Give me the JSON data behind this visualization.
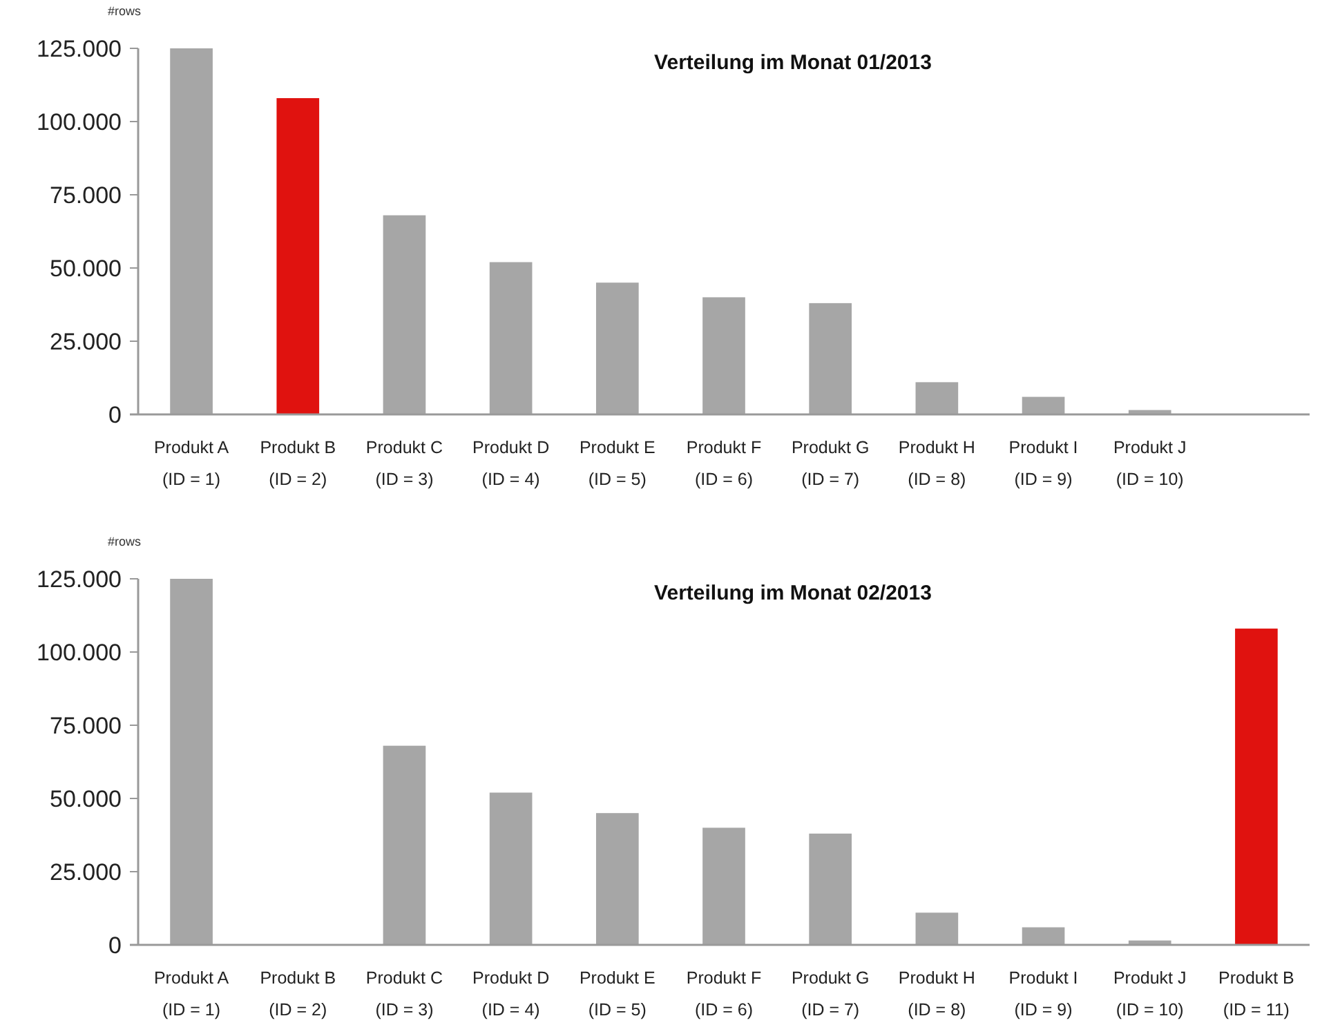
{
  "chart_data": [
    {
      "type": "bar",
      "title": "Verteilung im Monat 01/2013",
      "ylabel": "#rows",
      "categories": [
        "Produkt A\n(ID = 1)",
        "Produkt B\n(ID = 2)",
        "Produkt C\n(ID = 3)",
        "Produkt D\n(ID = 4)",
        "Produkt E\n(ID = 5)",
        "Produkt F\n(ID = 6)",
        "Produkt G\n(ID = 7)",
        "Produkt H\n(ID = 8)",
        "Produkt I\n(ID = 9)",
        "Produkt J\n(ID = 10)",
        null
      ],
      "values": [
        125000,
        108000,
        68000,
        52000,
        45000,
        40000,
        38000,
        11000,
        6000,
        1500,
        null
      ],
      "colors": [
        "#a6a6a6",
        "#e0120f",
        "#a6a6a6",
        "#a6a6a6",
        "#a6a6a6",
        "#a6a6a6",
        "#a6a6a6",
        "#a6a6a6",
        "#a6a6a6",
        "#a6a6a6",
        null
      ],
      "ylim": [
        0,
        125000
      ],
      "yticks": [
        0,
        {
          "value": 25000,
          "label": "25.000"
        },
        {
          "value": 50000,
          "label": "50.000"
        },
        {
          "value": 75000,
          "label": "75.000"
        },
        {
          "value": 100000,
          "label": "100.000"
        },
        {
          "value": 125000,
          "label": "125.000"
        }
      ],
      "grid": false
    },
    {
      "type": "bar",
      "title": "Verteilung im Monat 02/2013",
      "ylabel": "#rows",
      "categories": [
        "Produkt A\n(ID = 1)",
        "Produkt B\n(ID = 2)",
        "Produkt C\n(ID = 3)",
        "Produkt D\n(ID = 4)",
        "Produkt E\n(ID = 5)",
        "Produkt F\n(ID = 6)",
        "Produkt G\n(ID = 7)",
        "Produkt H\n(ID = 8)",
        "Produkt I\n(ID = 9)",
        "Produkt J\n(ID = 10)",
        "Produkt B\n(ID = 11)"
      ],
      "values": [
        125000,
        null,
        68000,
        52000,
        45000,
        40000,
        38000,
        11000,
        6000,
        1500,
        108000
      ],
      "colors": [
        "#a6a6a6",
        null,
        "#a6a6a6",
        "#a6a6a6",
        "#a6a6a6",
        "#a6a6a6",
        "#a6a6a6",
        "#a6a6a6",
        "#a6a6a6",
        "#a6a6a6",
        "#e0120f"
      ],
      "ylim": [
        0,
        125000
      ],
      "yticks": [
        0,
        {
          "value": 25000,
          "label": "25.000"
        },
        {
          "value": 50000,
          "label": "50.000"
        },
        {
          "value": 75000,
          "label": "75.000"
        },
        {
          "value": 100000,
          "label": "100.000"
        },
        {
          "value": 125000,
          "label": "125.000"
        }
      ],
      "grid": false
    }
  ]
}
